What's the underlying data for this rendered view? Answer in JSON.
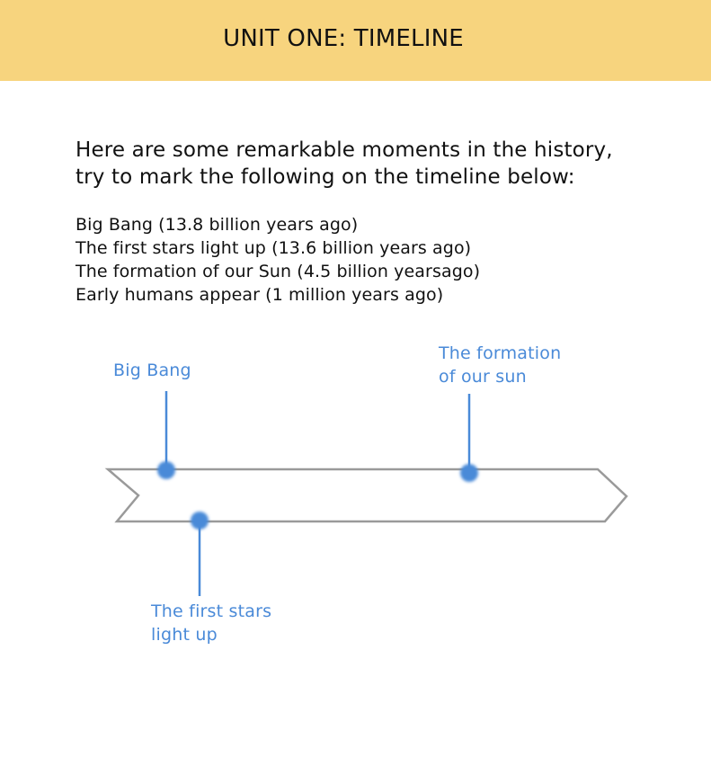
{
  "header": {
    "title": "UNIT ONE: TIMELINE",
    "background_color": "#f7d47e"
  },
  "intro": {
    "line1": "Here are some remarkable moments in the history,",
    "line2": "try to mark the following on the timeline below:"
  },
  "events": [
    "Big Bang (13.8 billion years ago)",
    "The first stars light up (13.6 billion years ago)",
    "The formation of our Sun (4.5 billion yearsago)",
    "Early humans appear (1 million years ago)"
  ],
  "timeline": {
    "outline_color": "#9a9a9a",
    "marker_color": "#4a8ad8",
    "markers": [
      {
        "lines": [
          "Big Bang"
        ]
      },
      {
        "lines": [
          "The formation",
          "of our sun"
        ]
      },
      {
        "lines": [
          "The first stars",
          "light up"
        ]
      }
    ]
  }
}
